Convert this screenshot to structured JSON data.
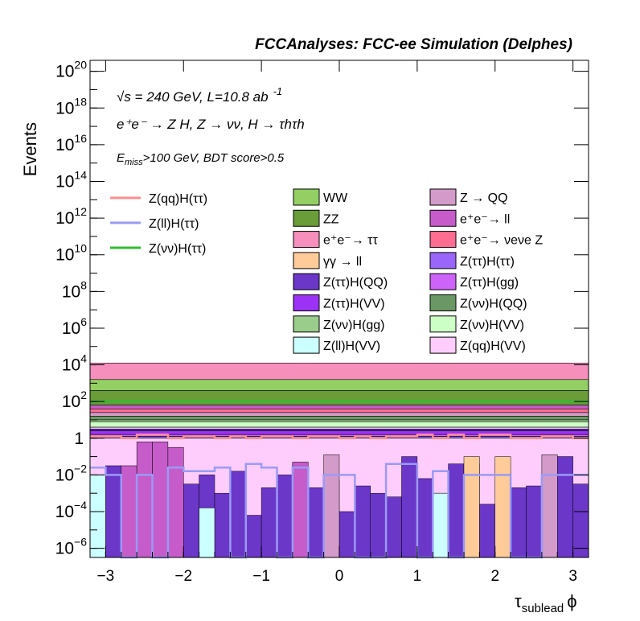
{
  "chart_data": {
    "type": "area",
    "title": "FCCAnalyses: FCC-ee Simulation (Delphes)",
    "xlabel": "τ_sublead ϕ",
    "xlabel_main": "τ",
    "xlabel_sub": "sublead",
    "xlabel_phi": "ϕ",
    "ylabel": "Events",
    "xlim": [
      -3.2,
      3.2
    ],
    "ylim_log10": [
      -6.5,
      20.6
    ],
    "log_y": true,
    "grid": false,
    "x_ticks": [
      -3,
      -2,
      -1,
      0,
      1,
      2,
      3
    ],
    "x_tick_labels": [
      "−3",
      "−2",
      "−1",
      "0",
      "1",
      "2",
      "3"
    ],
    "y_ticks": [
      {
        "exp": -6,
        "base": "10",
        "sup": "−6"
      },
      {
        "exp": -4,
        "base": "10",
        "sup": "−4"
      },
      {
        "exp": -2,
        "base": "10",
        "sup": "−2"
      },
      {
        "exp": 0,
        "base": "1",
        "sup": ""
      },
      {
        "exp": 2,
        "base": "10",
        "sup": "2"
      },
      {
        "exp": 4,
        "base": "10",
        "sup": "4"
      },
      {
        "exp": 6,
        "base": "10",
        "sup": "6"
      },
      {
        "exp": 8,
        "base": "10",
        "sup": "8"
      },
      {
        "exp": 10,
        "base": "10",
        "sup": "10"
      },
      {
        "exp": 12,
        "base": "10",
        "sup": "12"
      },
      {
        "exp": 14,
        "base": "10",
        "sup": "14"
      },
      {
        "exp": 16,
        "base": "10",
        "sup": "16"
      },
      {
        "exp": 18,
        "base": "10",
        "sup": "18"
      },
      {
        "exp": 20,
        "base": "10",
        "sup": "20"
      }
    ],
    "annotations": {
      "energy": "√s = 240 GeV, L=10.8 ab",
      "energy_sup": "-1",
      "process": "e⁺e⁻ → Z H, Z → νν, H → τhτh",
      "selection_main": "E",
      "selection_sub": "miss",
      "selection_rest": ">100 GeV, BDT score>0.5"
    },
    "n_bins": 32,
    "stack": [
      {
        "name": "e+e-→ττ",
        "color": "#f78fbd",
        "log10_top": 4.1,
        "log10_bottom": 3.2
      },
      {
        "name": "WW",
        "color": "#94cf63",
        "log10_top": 3.2,
        "log10_bottom": 2.6
      },
      {
        "name": "ZZ",
        "color": "#6a9c37",
        "log10_top": 2.6,
        "log10_bottom": 1.8
      },
      {
        "name": "e+e-→ll",
        "color": "#c55cc9",
        "log10_top": 1.8,
        "log10_bottom": 1.6
      },
      {
        "name": "e+e-→νeνeZ",
        "color": "#ff6d91",
        "log10_top": 1.6,
        "log10_bottom": 1.4
      },
      {
        "name": "Z→QQ",
        "color": "#d39bc9",
        "log10_top": 1.4,
        "log10_bottom": 1.2
      },
      {
        "name": "Z(νν)H(QQ)",
        "color": "#6a9865",
        "log10_top": 1.2,
        "log10_bottom": 1.0
      },
      {
        "name": "Z(νν)H(gg)",
        "color": "#9acc8b",
        "log10_top": 1.0,
        "log10_bottom": 0.9
      },
      {
        "name": "Z(νν)H(VV)",
        "color": "#ccffc6",
        "log10_top": 0.9,
        "log10_bottom": 0.6
      },
      {
        "name": "Z(qq)H(VV)",
        "color": "#ffcdfb",
        "log10_top": 0.6,
        "log10_bottom": 0.5
      },
      {
        "name": "Z(ττ)H(QQ)",
        "color": "#6a37c9",
        "log10_top": 0.5,
        "log10_bottom": 0.4
      },
      {
        "name": "Z(ττ)H(VV)",
        "color": "#9b32f5",
        "log10_top": 0.4,
        "log10_bottom": 0.2
      },
      {
        "name": "Z(ττ)H(gg)",
        "color": "#cd63f9",
        "log10_top": 0.2,
        "log10_bottom": 0.1
      },
      {
        "name": "Z(ττ)H(ττ)",
        "color": "#9a66f9",
        "log10_top": 0.1,
        "log10_bottom": 0.0
      },
      {
        "name": "Z(qq)H(VV) low",
        "color": "#ffcdfb",
        "log10_top": 0.0,
        "log10_bottom": -6.5
      }
    ],
    "low_bins": [
      {
        "color": "#6a37c9",
        "log10": [
          -4.2,
          -1.5,
          -3.6,
          -3.2,
          -3.3,
          -2.1,
          -2.5,
          -2.0,
          -3.0,
          -1.8,
          -4.2,
          -2.7,
          -2.0,
          -1.4,
          -2.7,
          -2.3,
          -4.0,
          -2.6,
          -3.0,
          -3.2,
          -1.0,
          -2.2,
          -3.0,
          -1.4,
          -1.4,
          -3.6,
          -1.8,
          -2.7,
          -2.6,
          -2.3,
          -1.0,
          -2.5
        ]
      },
      {
        "color": "#c55cc9",
        "log10": [
          -6.5,
          -6.5,
          -1.5,
          -0.2,
          -0.2,
          -0.5,
          -6.5,
          -6.5,
          -6.5,
          -6.5,
          -6.5,
          -6.5,
          -6.5,
          -1.3,
          -6.5,
          -6.5,
          -6.5,
          -6.5,
          -6.5,
          -6.5,
          -6.5,
          -6.5,
          -6.5,
          -6.5,
          -6.5,
          -6.5,
          -6.5,
          -6.5,
          -6.5,
          -6.5,
          -6.5,
          -6.5
        ]
      },
      {
        "color": "#d39bc9",
        "log10": [
          -6.5,
          -6.5,
          -6.5,
          -6.5,
          -6.5,
          -6.5,
          -6.5,
          -6.5,
          -6.5,
          -6.5,
          -6.5,
          -6.5,
          -6.5,
          -6.5,
          -6.5,
          -0.9,
          -6.5,
          -6.5,
          -6.5,
          -6.5,
          -6.5,
          -6.5,
          -6.5,
          -6.5,
          -6.5,
          -6.5,
          -6.5,
          -6.5,
          -6.5,
          -0.9,
          -6.5,
          -6.5
        ]
      },
      {
        "color": "#ccffff",
        "log10": [
          -2.0,
          -6.5,
          -6.5,
          -6.5,
          -6.5,
          -6.5,
          -6.5,
          -3.8,
          -6.5,
          -6.5,
          -6.5,
          -6.5,
          -6.5,
          -6.5,
          -6.5,
          -6.5,
          -6.5,
          -6.5,
          -6.5,
          -6.5,
          -6.5,
          -6.5,
          -3.0,
          -6.5,
          -6.5,
          -6.5,
          -6.5,
          -6.5,
          -6.5,
          -6.5,
          -6.5,
          -6.5
        ]
      },
      {
        "color": "#ffcc99",
        "log10": [
          -6.5,
          -6.5,
          -6.5,
          -6.5,
          -6.5,
          -6.5,
          -6.5,
          -6.5,
          -6.5,
          -6.5,
          -6.5,
          -6.5,
          -6.5,
          -6.5,
          -6.5,
          -6.5,
          -6.5,
          -6.5,
          -6.5,
          -6.5,
          -6.5,
          -6.5,
          -6.5,
          -6.5,
          -1.0,
          -6.5,
          -1.0,
          -6.5,
          -6.5,
          -6.5,
          -6.5,
          -6.5
        ]
      }
    ],
    "lines": [
      {
        "name": "Z(qq)H(ττ)",
        "color": "#ff8f8f",
        "width": 2.5,
        "log10": [
          0.1,
          0.1,
          0.0,
          0.2,
          0.2,
          0.0,
          0.1,
          0.1,
          0.0,
          0.1,
          0.0,
          0.1,
          0.1,
          0.0,
          0.1,
          0.1,
          0.0,
          0.1,
          0.0,
          0.1,
          0.1,
          0.2,
          0.0,
          0.2,
          0.0,
          0.2,
          0.2,
          0.0,
          0.0,
          0.1,
          0.1,
          0.0
        ]
      },
      {
        "name": "Z(ll)H(ττ)",
        "color": "#9a9af5",
        "width": 2.5,
        "log10": [
          -1.6,
          -2.0,
          -6.5,
          -2.0,
          -6.5,
          -1.6,
          -1.8,
          -1.8,
          -1.6,
          -6.5,
          -1.4,
          -1.6,
          -6.5,
          -1.6,
          -6.5,
          -2.0,
          -2.0,
          -6.5,
          -6.5,
          -1.4,
          -1.4,
          -6.5,
          -1.8,
          -6.5,
          -2.0,
          -2.0,
          -2.0,
          -6.5,
          -6.5,
          -2.0,
          -2.0,
          -2.0
        ]
      },
      {
        "name": "Z(νν)H(ττ)",
        "color": "#33bb33",
        "width": 2.5,
        "log10": [
          2.0,
          2.0,
          2.0,
          2.0,
          2.0,
          2.0,
          2.0,
          2.0,
          2.0,
          2.0,
          2.0,
          2.0,
          2.0,
          2.0,
          2.0,
          2.0,
          2.0,
          2.0,
          2.0,
          2.0,
          2.0,
          2.0,
          2.0,
          2.0,
          2.0,
          2.0,
          2.0,
          2.0,
          2.0,
          2.0,
          2.0,
          2.0
        ]
      }
    ],
    "legend_lines": [
      {
        "label": "Z(qq)H(ττ)",
        "color": "#ff8f8f"
      },
      {
        "label": "Z(ll)H(ττ)",
        "color": "#9a9af5"
      },
      {
        "label": "Z(νν)H(ττ)",
        "color": "#33bb33"
      }
    ],
    "legend_fills": [
      {
        "label": "WW",
        "color": "#94cf63"
      },
      {
        "label": "Z → QQ",
        "color": "#d39bc9"
      },
      {
        "label": "ZZ",
        "color": "#6a9c37"
      },
      {
        "label": "e⁺e⁻→ ll",
        "color": "#c55cc9"
      },
      {
        "label": "e⁺e⁻→ ττ",
        "color": "#f78fbd"
      },
      {
        "label": "e⁺e⁻→ νeνe Z",
        "color": "#ff6d91"
      },
      {
        "label": "γγ → ll",
        "color": "#ffcc99"
      },
      {
        "label": "Z(ττ)H(ττ)",
        "color": "#9a66f9"
      },
      {
        "label": "Z(ττ)H(QQ)",
        "color": "#6a37c9"
      },
      {
        "label": "Z(ττ)H(gg)",
        "color": "#cd63f9"
      },
      {
        "label": "Z(ττ)H(VV)",
        "color": "#9b32f5"
      },
      {
        "label": "Z(νν)H(QQ)",
        "color": "#6a9865"
      },
      {
        "label": "Z(νν)H(gg)",
        "color": "#9acc8b"
      },
      {
        "label": "Z(νν)H(VV)",
        "color": "#ccffc6"
      },
      {
        "label": "Z(ll)H(VV)",
        "color": "#ccffff"
      },
      {
        "label": "Z(qq)H(VV)",
        "color": "#ffcdfb"
      }
    ]
  }
}
